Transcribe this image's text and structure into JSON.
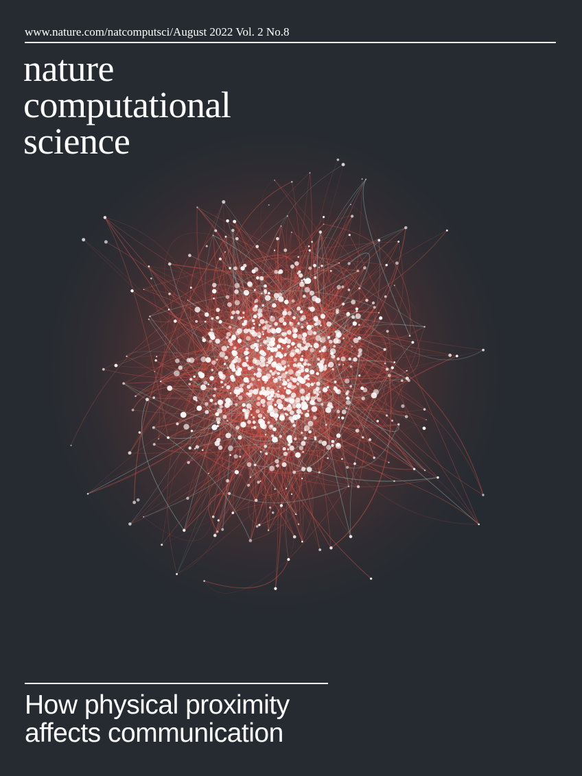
{
  "header": {
    "url_issue": "www.nature.com/natcomputsci/August 2022 Vol. 2 No.8"
  },
  "masthead": {
    "line1": "nature",
    "line2": "computational",
    "line3": "science"
  },
  "cover_story": {
    "line1": "How physical proximity",
    "line2": "affects communication"
  },
  "colors": {
    "background": "#262b31",
    "edge_red": "#e0584c",
    "edge_teal": "#9fd8d2",
    "node": "#ffffff",
    "text": "#ffffff"
  }
}
